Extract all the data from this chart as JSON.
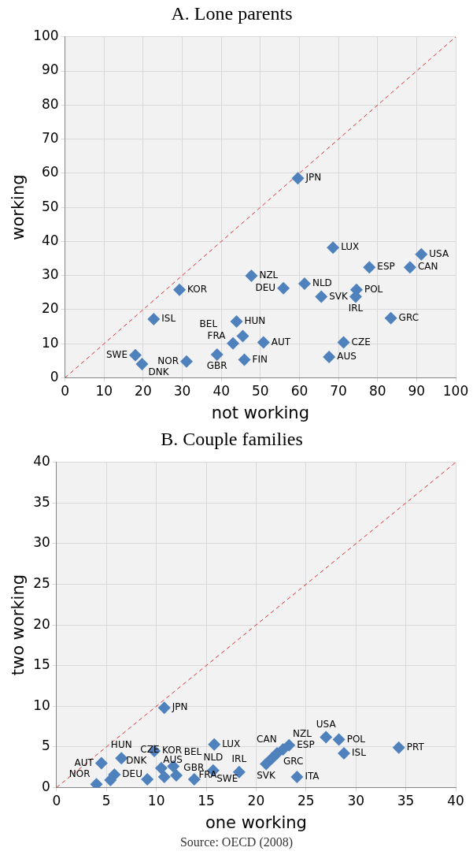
{
  "chart_data": [
    {
      "type": "scatter",
      "title": "A. Lone parents",
      "xlabel": "not working",
      "ylabel": "working",
      "xlim": [
        0,
        100
      ],
      "ylim": [
        0,
        100
      ],
      "xticks": [
        0,
        10,
        20,
        30,
        40,
        50,
        60,
        70,
        80,
        90,
        100
      ],
      "yticks": [
        0,
        10,
        20,
        30,
        40,
        50,
        60,
        70,
        80,
        90,
        100
      ],
      "grid": true,
      "marker": "diamond",
      "series": [
        {
          "color": "#4f81bd",
          "x": [
            59.6,
            68.6,
            91.2,
            77.9,
            88.3,
            47.7,
            55.9,
            61.3,
            65.6,
            74.6,
            74.4,
            83.4,
            29.3,
            22.7,
            43.9,
            45.5,
            43.0,
            50.8,
            71.3,
            67.6,
            45.9,
            38.9,
            31.1,
            18.0,
            19.7
          ],
          "values": [
            58.5,
            38.2,
            36.2,
            32.4,
            32.4,
            29.9,
            26.3,
            27.6,
            23.8,
            25.8,
            23.8,
            17.5,
            25.8,
            17.2,
            16.5,
            12.2,
            10.1,
            10.4,
            10.4,
            6.1,
            5.3,
            6.8,
            4.8,
            6.6,
            4.0
          ]
        },
        {
          "type": "line",
          "color": "#e03030",
          "line_style": "dashed",
          "marker": "none",
          "x": [
            0,
            100
          ],
          "values": [
            0,
            100
          ]
        }
      ],
      "annotations": [
        {
          "text": "JPN",
          "x": 59.6,
          "y": 58.5
        },
        {
          "text": "LUX",
          "x": 68.6,
          "y": 38.2
        },
        {
          "text": "USA",
          "x": 91.2,
          "y": 36.2
        },
        {
          "text": "ESP",
          "x": 77.9,
          "y": 32.4
        },
        {
          "text": "CAN",
          "x": 88.3,
          "y": 32.4
        },
        {
          "text": "NZL",
          "x": 47.7,
          "y": 29.9
        },
        {
          "text": "DEU",
          "x": 55.9,
          "y": 26.3
        },
        {
          "text": "NLD",
          "x": 61.3,
          "y": 27.6
        },
        {
          "text": "SVK",
          "x": 65.6,
          "y": 23.8
        },
        {
          "text": "POL",
          "x": 74.6,
          "y": 25.8
        },
        {
          "text": "IRL",
          "x": 74.4,
          "y": 23.8
        },
        {
          "text": "GRC",
          "x": 83.4,
          "y": 17.5
        },
        {
          "text": "KOR",
          "x": 29.3,
          "y": 25.8
        },
        {
          "text": "ISL",
          "x": 22.7,
          "y": 17.2
        },
        {
          "text": "HUN",
          "x": 43.9,
          "y": 16.5
        },
        {
          "text": "FRA",
          "x": 45.5,
          "y": 12.2
        },
        {
          "text": "BEL",
          "x": 43.0,
          "y": 10.1
        },
        {
          "text": "AUT",
          "x": 50.8,
          "y": 10.4
        },
        {
          "text": "CZE",
          "x": 71.3,
          "y": 10.4
        },
        {
          "text": "AUS",
          "x": 67.6,
          "y": 6.1
        },
        {
          "text": "FIN",
          "x": 45.9,
          "y": 5.3
        },
        {
          "text": "GBR",
          "x": 38.9,
          "y": 6.8
        },
        {
          "text": "NOR",
          "x": 31.1,
          "y": 4.8
        },
        {
          "text": "SWE",
          "x": 18.0,
          "y": 6.6
        },
        {
          "text": "DNK",
          "x": 19.7,
          "y": 4.0
        }
      ]
    },
    {
      "type": "scatter",
      "title": "B. Couple families",
      "xlabel": "one working",
      "ylabel": "two working",
      "xlim": [
        0,
        40
      ],
      "ylim": [
        0,
        40
      ],
      "xticks": [
        0,
        5,
        10,
        15,
        20,
        25,
        30,
        35,
        40
      ],
      "yticks": [
        0,
        5,
        10,
        15,
        20,
        25,
        30,
        35,
        40
      ],
      "grid": true,
      "marker": "diamond",
      "series": [
        {
          "color": "#4f81bd",
          "x": [
            10.8,
            15.8,
            9.8,
            6.5,
            4.5,
            5.8,
            4.0,
            5.4,
            9.1,
            10.5,
            11.7,
            10.8,
            12.0,
            15.7,
            13.8,
            18.3,
            21.0,
            21.6,
            22.1,
            22.7,
            23.3,
            24.1,
            27.0,
            28.3,
            28.8,
            34.3
          ],
          "values": [
            9.8,
            5.3,
            4.5,
            3.6,
            3.0,
            1.6,
            0.4,
            0.9,
            1.0,
            2.4,
            2.6,
            1.3,
            1.5,
            2.1,
            1.0,
            1.9,
            2.9,
            3.6,
            4.2,
            4.7,
            5.2,
            1.3,
            6.2,
            5.9,
            4.2,
            4.9
          ]
        },
        {
          "type": "line",
          "color": "#e03030",
          "line_style": "dashed",
          "marker": "none",
          "x": [
            0,
            40
          ],
          "values": [
            0,
            40
          ]
        }
      ],
      "annotations": [
        {
          "text": "JPN",
          "x": 10.8,
          "y": 9.8
        },
        {
          "text": "LUX",
          "x": 15.8,
          "y": 5.3
        },
        {
          "text": "KOR",
          "x": 9.8,
          "y": 4.5
        },
        {
          "text": "HUN",
          "x": 6.5,
          "y": 3.6
        },
        {
          "text": "AUT",
          "x": 4.5,
          "y": 3.0
        },
        {
          "text": "DEU",
          "x": 5.8,
          "y": 1.6
        },
        {
          "text": "NOR",
          "x": 4.0,
          "y": 0.4
        },
        {
          "text": "DNK",
          "x": 5.4,
          "y": 0.9
        },
        {
          "text": "AUS",
          "x": 9.1,
          "y": 1.0
        },
        {
          "text": "GBR",
          "x": 10.5,
          "y": 2.4
        },
        {
          "text": "BEL",
          "x": 11.7,
          "y": 2.6
        },
        {
          "text": "CZE",
          "x": 10.8,
          "y": 1.3
        },
        {
          "text": "FRA",
          "x": 12.0,
          "y": 1.5
        },
        {
          "text": "NLD",
          "x": 15.7,
          "y": 2.1
        },
        {
          "text": "SWE",
          "x": 13.8,
          "y": 1.0
        },
        {
          "text": "IRL",
          "x": 18.3,
          "y": 1.9
        },
        {
          "text": "SVK",
          "x": 21.0,
          "y": 2.9
        },
        {
          "text": "GRC",
          "x": 22.1,
          "y": 4.2
        },
        {
          "text": "CAN",
          "x": 22.7,
          "y": 4.7
        },
        {
          "text": "NZL",
          "x": 21.6,
          "y": 3.6
        },
        {
          "text": "ESP",
          "x": 23.3,
          "y": 5.2
        },
        {
          "text": "ITA",
          "x": 24.1,
          "y": 1.3
        },
        {
          "text": "USA",
          "x": 27.0,
          "y": 6.2
        },
        {
          "text": "POL",
          "x": 28.3,
          "y": 5.9
        },
        {
          "text": "ISL",
          "x": 28.8,
          "y": 4.2
        },
        {
          "text": "PRT",
          "x": 34.3,
          "y": 4.9
        },
        "Source: OECD (2008)"
      ]
    }
  ]
}
